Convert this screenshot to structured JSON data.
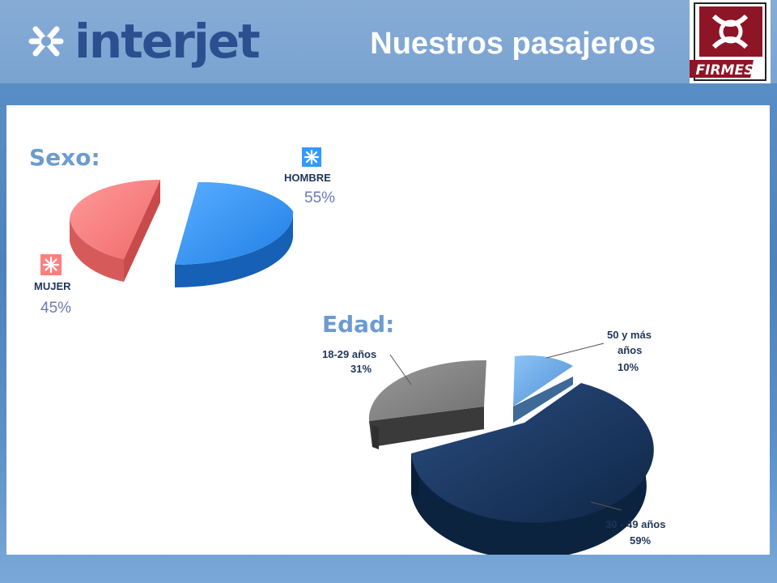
{
  "header": {
    "brand": "interjet",
    "title": "Nuestros pasajeros",
    "partner_logo_text": "FIRMESA"
  },
  "colors": {
    "header_bg": "#7ba3d0",
    "brand_text": "#2b4f8f",
    "hombre": "#3399ff",
    "mujer": "#ff7f7f",
    "age_18_29": "#7f7f7f",
    "age_30_49": "#16345c",
    "age_50_plus": "#5b9fe0"
  },
  "chart_data": [
    {
      "type": "pie",
      "title": "Sexo:",
      "categories": [
        "HOMBRE",
        "MUJER"
      ],
      "values": [
        55,
        45
      ],
      "value_labels": [
        "55%",
        "45%"
      ]
    },
    {
      "type": "pie",
      "title": "Edad:",
      "categories": [
        "18-29 años",
        "30 - 49 años",
        "50 y más años"
      ],
      "values": [
        31,
        59,
        10
      ],
      "value_labels": [
        "31%",
        "59%",
        "10%"
      ]
    }
  ]
}
